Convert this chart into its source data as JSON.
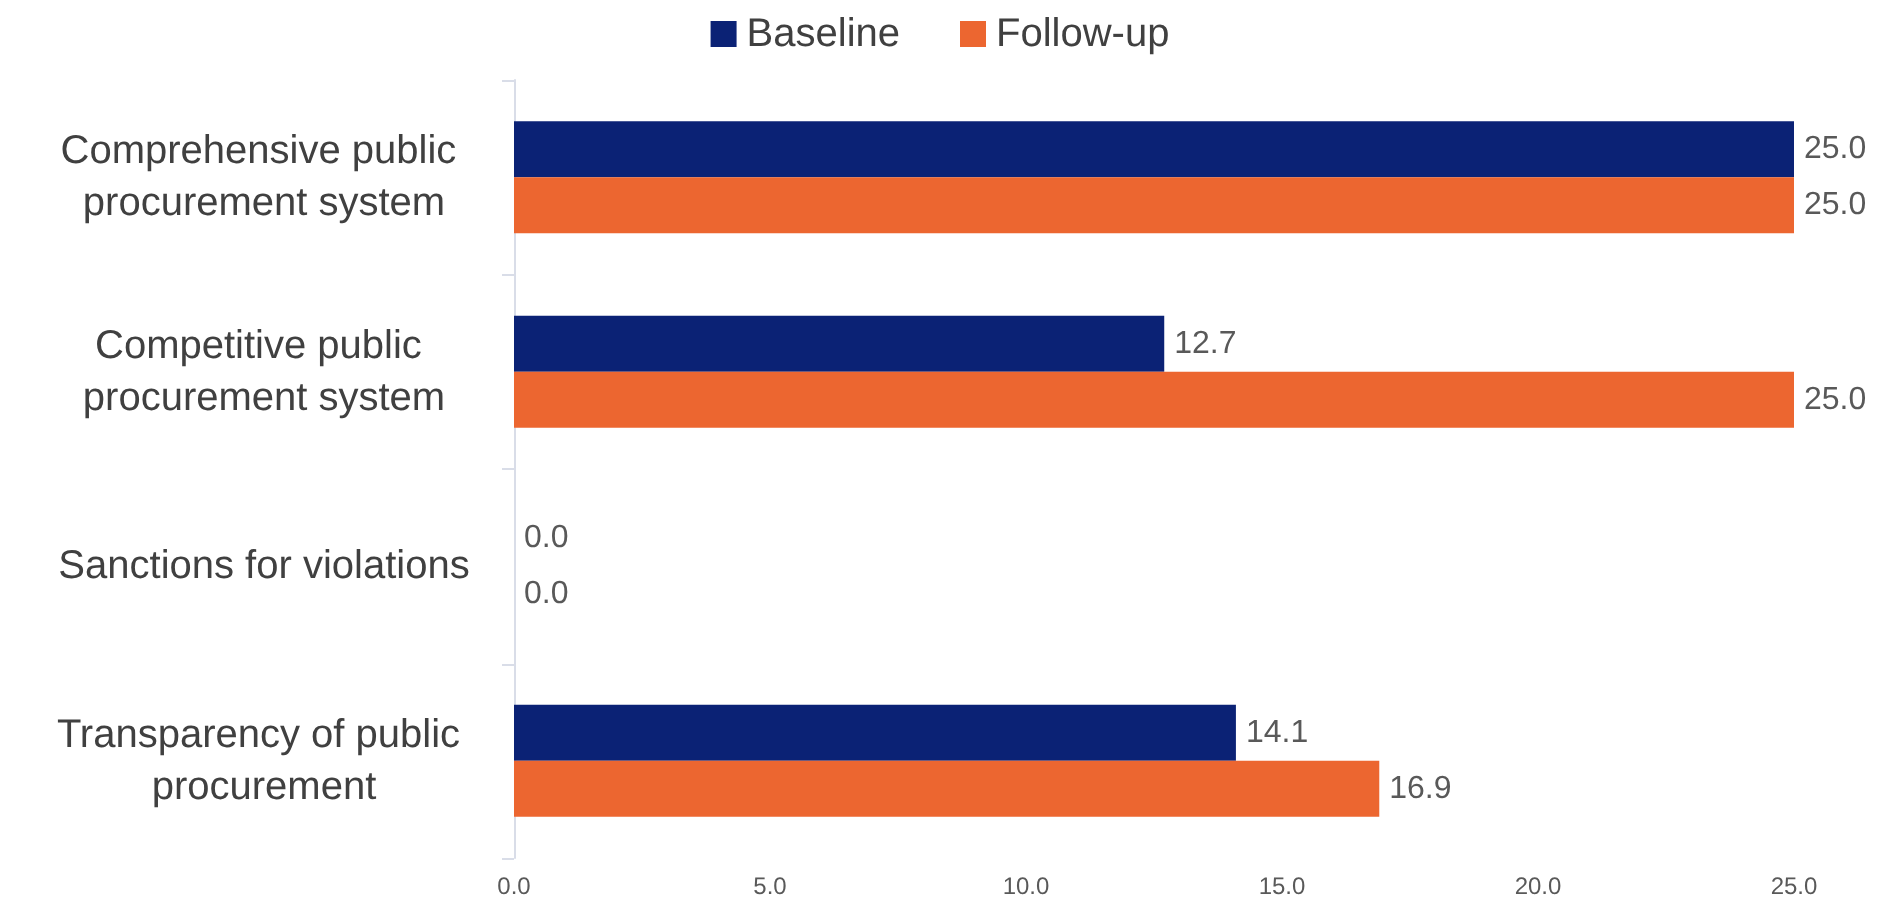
{
  "chart_data": {
    "type": "bar",
    "orientation": "horizontal",
    "categories": [
      "Comprehensive public procurement system",
      "Competitive public procurement system",
      "Sanctions for violations",
      "Transparency of public procurement"
    ],
    "series": [
      {
        "name": "Baseline",
        "color": "#0b2275",
        "values": [
          25,
          12.7,
          0,
          14.1
        ],
        "value_labels": [
          "25.0",
          "12.7",
          "0.0",
          "14.1"
        ]
      },
      {
        "name": "Follow-up",
        "color": "#ec6630",
        "values": [
          25,
          25,
          0,
          16.9
        ],
        "value_labels": [
          "25.0",
          "25.0",
          "0.0",
          "16.9"
        ]
      }
    ],
    "xlim": [
      0,
      25
    ],
    "xticks": [
      {
        "value": 0,
        "label": "0.0"
      },
      {
        "value": 5,
        "label": "5.0"
      },
      {
        "value": 10,
        "label": "10.0"
      },
      {
        "value": 15,
        "label": "15.0"
      },
      {
        "value": 20,
        "label": "20.0"
      },
      {
        "value": 25,
        "label": "25.0"
      }
    ],
    "grid": false,
    "legend": "top"
  }
}
